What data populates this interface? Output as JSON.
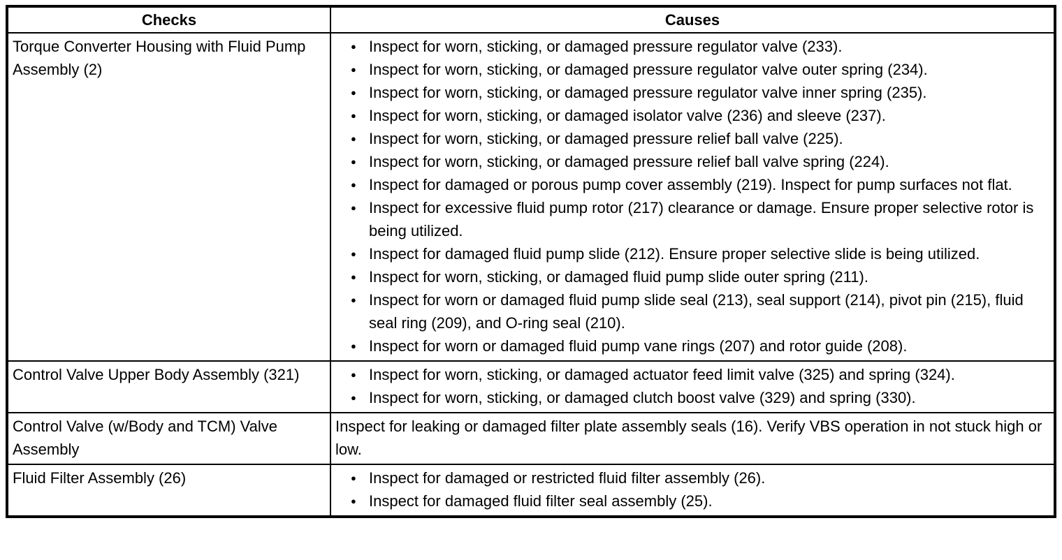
{
  "table": {
    "headers": [
      "Checks",
      "Causes"
    ],
    "rows": [
      {
        "check": "Torque Converter Housing with Fluid Pump Assembly (2)",
        "bulleted": true,
        "causes": [
          "Inspect for worn, sticking, or damaged pressure regulator valve (233).",
          "Inspect for worn, sticking, or damaged pressure regulator valve outer spring (234).",
          "Inspect for worn, sticking, or damaged pressure regulator valve inner spring (235).",
          "Inspect for worn, sticking, or damaged isolator valve (236) and sleeve (237).",
          "Inspect for worn, sticking, or damaged pressure relief ball valve (225).",
          "Inspect for worn, sticking, or damaged pressure relief ball valve spring (224).",
          "Inspect for damaged or porous pump cover assembly (219). Inspect for pump surfaces not flat.",
          "Inspect for excessive fluid pump rotor (217) clearance or damage. Ensure proper selective rotor is being utilized.",
          "Inspect for damaged fluid pump slide (212). Ensure proper selective slide is being utilized.",
          "Inspect for worn, sticking, or damaged fluid pump slide outer spring (211).",
          "Inspect for worn or damaged fluid pump slide seal (213), seal support (214), pivot pin (215), fluid seal ring (209), and O-ring seal (210).",
          "Inspect for worn or damaged fluid pump vane rings (207) and rotor guide (208)."
        ]
      },
      {
        "check": "Control Valve Upper Body Assembly (321)",
        "bulleted": true,
        "causes": [
          "Inspect for worn, sticking, or damaged actuator feed limit valve (325) and spring (324).",
          "Inspect for worn, sticking, or damaged clutch boost valve (329) and spring (330)."
        ]
      },
      {
        "check": "Control Valve (w/Body and TCM) Valve Assembly",
        "bulleted": false,
        "causes": [
          "Inspect for leaking or damaged filter plate assembly seals (16). Verify VBS operation in not stuck high or low."
        ]
      },
      {
        "check": "Fluid Filter Assembly (26)",
        "bulleted": true,
        "causes": [
          "Inspect for damaged or restricted fluid filter assembly (26).",
          "Inspect for damaged fluid filter seal assembly (25)."
        ]
      }
    ]
  }
}
